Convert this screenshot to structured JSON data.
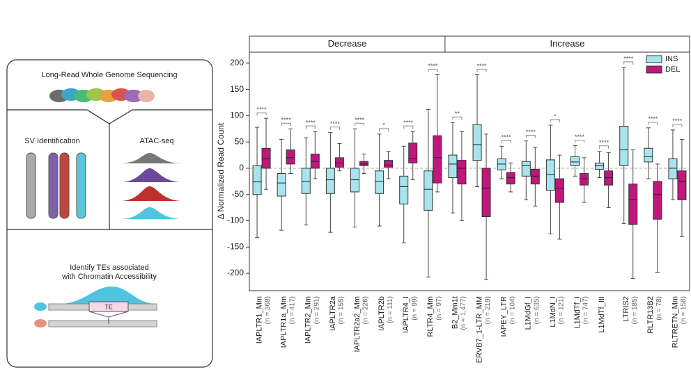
{
  "schematic": {
    "step1": "Long-Read Whole Genome Sequencing",
    "step2a": "SV Identification",
    "step2b": "ATAC-seq",
    "step3_line1": "Identify TEs associated",
    "step3_line2": "with Chromatin Accessibility",
    "te_label": "TE"
  },
  "chart_data": {
    "type": "box",
    "ylabel": "Δ Normalized Read Count",
    "ylim": [
      -233,
      221
    ],
    "yticks": [
      -200,
      -150,
      -100,
      -50,
      0,
      50,
      100,
      150,
      200
    ],
    "hline": 0,
    "legend_position": "upper right",
    "groups": [
      {
        "label": "Decrease",
        "categories": [
          "IAPLTR1_Mm",
          "IAPLTR1a_Mm",
          "IAPLTR2_Mm",
          "IAPLTR2a",
          "IAPLTR2a2_Mm",
          "IAPLTR2b",
          "IAPLTR4_I",
          "RLTR4_Mm"
        ],
        "n_labels": [
          "(n = 368)",
          "(n = 417)",
          "(n = 291)",
          "(n = 155)",
          "(n = 226)",
          "(n = 111)",
          "(n = 99)",
          "(n = 97)"
        ],
        "significance": [
          "****",
          "****",
          "****",
          "****",
          "****",
          "*",
          "****",
          "****"
        ]
      },
      {
        "label": "Increase",
        "categories": [
          "B2_Mm1t",
          "ERVB7_1-LTR_MM",
          "IAPEY_LTR",
          "L1MdGf_I",
          "L1MdN_I",
          "L1MdTf_I",
          "L1MdTf_III",
          "LTRIS2",
          "RLTR13B2",
          "RLTRETN_Mm"
        ],
        "n_labels": [
          "(n = 1,477)",
          "(n = 219)",
          "(n = 104)",
          "(n = 635)",
          "(n = 121)",
          "(n = 747)",
          null,
          "(n = 185)",
          "(n = 78)",
          "(n = 158)"
        ],
        "significance": [
          "**",
          "****",
          "****",
          "****",
          "*",
          "****",
          "****",
          "****",
          "****",
          "****"
        ]
      }
    ],
    "series": [
      {
        "name": "INS",
        "color": "#a8e4ee",
        "values": [
          [
            -132,
            -50,
            -26,
            5,
            78
          ],
          [
            -118,
            -53,
            -28,
            -10,
            55
          ],
          [
            -108,
            -48,
            -25,
            0,
            58
          ],
          [
            -122,
            -48,
            -22,
            0,
            68
          ],
          [
            -112,
            -45,
            -22,
            0,
            75
          ],
          [
            -110,
            -48,
            -25,
            -5,
            65
          ],
          [
            -142,
            -68,
            -35,
            -15,
            42
          ],
          [
            -207,
            -80,
            -40,
            -5,
            112
          ],
          [
            -85,
            -18,
            8,
            25,
            87
          ],
          [
            -35,
            15,
            45,
            83,
            178
          ],
          [
            -20,
            -3,
            8,
            18,
            42
          ],
          [
            -60,
            -15,
            5,
            13,
            52
          ],
          [
            -125,
            -42,
            -12,
            16,
            82
          ],
          [
            -15,
            5,
            12,
            22,
            43
          ],
          [
            -18,
            -2,
            5,
            10,
            32
          ],
          [
            -105,
            5,
            35,
            80,
            192
          ],
          [
            -20,
            12,
            22,
            38,
            77
          ],
          [
            -60,
            -20,
            0,
            18,
            73
          ]
        ]
      },
      {
        "name": "DEL",
        "color": "#c0177c",
        "values": [
          [
            -40,
            0,
            18,
            38,
            95
          ],
          [
            -10,
            8,
            20,
            35,
            75
          ],
          [
            -20,
            0,
            13,
            27,
            70
          ],
          [
            -5,
            2,
            10,
            20,
            47
          ],
          [
            -10,
            5,
            8,
            13,
            27
          ],
          [
            -20,
            2,
            6,
            15,
            32
          ],
          [
            -22,
            10,
            18,
            48,
            70
          ],
          [
            -45,
            -28,
            20,
            62,
            178
          ],
          [
            -100,
            -30,
            0,
            15,
            70
          ],
          [
            -212,
            -92,
            -38,
            0,
            65
          ],
          [
            -45,
            -30,
            -18,
            -8,
            10
          ],
          [
            -72,
            -30,
            -15,
            -2,
            40
          ],
          [
            -135,
            -65,
            -38,
            -20,
            25
          ],
          [
            -65,
            -32,
            -20,
            -10,
            20
          ],
          [
            -75,
            -32,
            -18,
            -5,
            30
          ],
          [
            -210,
            -107,
            -60,
            -30,
            35
          ],
          [
            -198,
            -97,
            -50,
            -25,
            8
          ],
          [
            -130,
            -60,
            -25,
            -5,
            55
          ]
        ]
      }
    ]
  }
}
